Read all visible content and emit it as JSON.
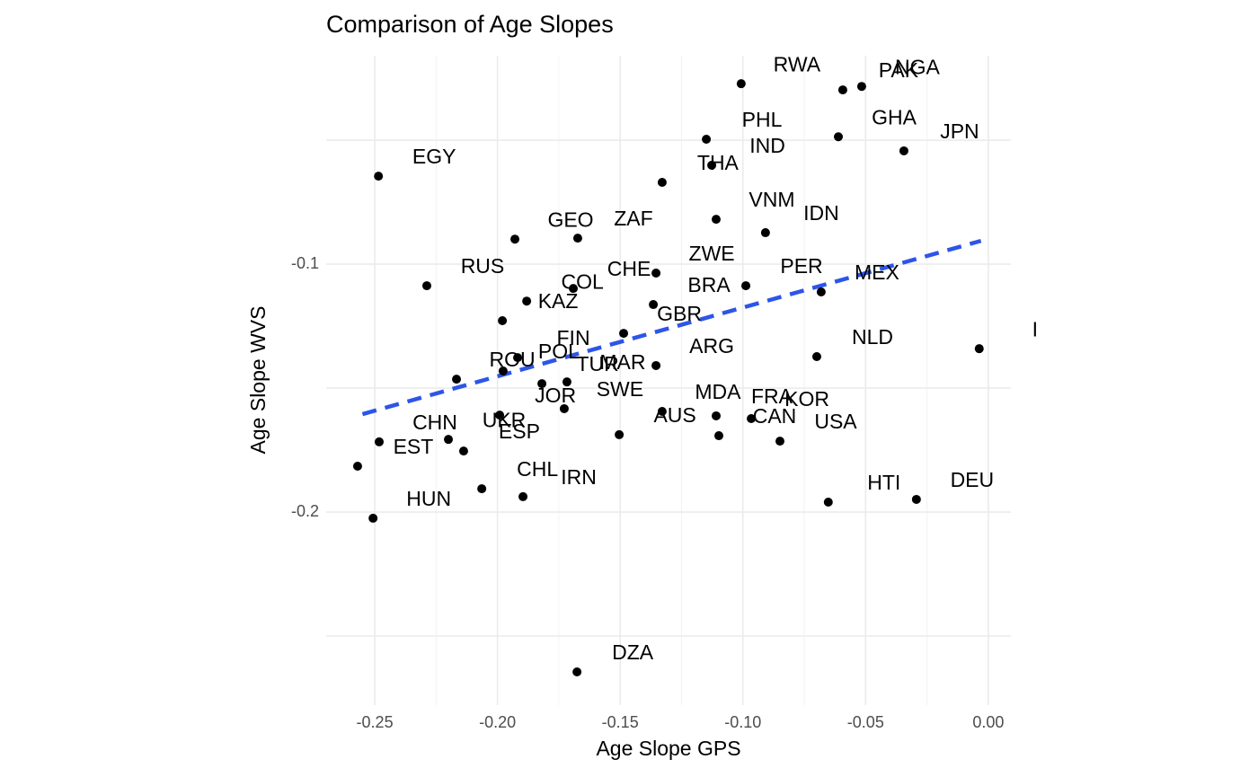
{
  "chart_data": {
    "type": "scatter",
    "title": "Comparison of Age Slopes",
    "x_label": "Age Slope GPS",
    "y_label": "Age Slope WVS",
    "labels": [
      "RWA",
      "PAK",
      "NGA",
      "PHL",
      "GHA",
      "JPN",
      "IND",
      "EGY",
      "THA",
      "VNM",
      "IDN",
      "GEO",
      "ZAF",
      "ZWE",
      "RUS",
      "CHE",
      "PER",
      "MEX",
      "COL",
      "BRA",
      "KAZ",
      "GBR",
      "I",
      "NLD",
      "FIN",
      "POL",
      "ARG",
      "ROU",
      "TUR",
      "MAR",
      "SWE",
      "JOR",
      "MDA",
      "FRA",
      "KOR",
      "UKR",
      "CHN",
      "ESP",
      "AUS",
      "CAN",
      "USA",
      "EST",
      "CHL",
      "IRN",
      "HUN",
      "HTI",
      "DEU",
      "DZA"
    ],
    "x": [
      -0.1007,
      -0.0593,
      -0.0516,
      -0.1149,
      -0.0611,
      -0.0344,
      -0.1127,
      -0.2485,
      -0.1329,
      -0.1109,
      -0.0908,
      -0.1929,
      -0.1673,
      -0.1354,
      -0.2288,
      -0.1691,
      -0.0988,
      -0.0681,
      -0.1881,
      -0.1365,
      -0.198,
      -0.1486,
      -0.0037,
      -0.0699,
      -0.1918,
      -0.1977,
      -0.1354,
      -0.2167,
      -0.1819,
      -0.1717,
      -0.1728,
      -0.1991,
      -0.1329,
      -0.1109,
      -0.0966,
      -0.22,
      -0.2482,
      -0.2138,
      -0.1504,
      -0.1098,
      -0.0849,
      -0.257,
      -0.2064,
      -0.1896,
      -0.2507,
      -0.0652,
      -0.0293,
      -0.1676
    ],
    "y": [
      -0.0272,
      -0.0297,
      -0.0283,
      -0.0496,
      -0.0486,
      -0.0543,
      -0.0601,
      -0.0645,
      -0.067,
      -0.0819,
      -0.0873,
      -0.0899,
      -0.0895,
      -0.1036,
      -0.1087,
      -0.1098,
      -0.1087,
      -0.1112,
      -0.1149,
      -0.1163,
      -0.1228,
      -0.1279,
      -0.1341,
      -0.1373,
      -0.1377,
      -0.1431,
      -0.1409,
      -0.1464,
      -0.1482,
      -0.1475,
      -0.1583,
      -0.1609,
      -0.1594,
      -0.1612,
      -0.1623,
      -0.1707,
      -0.1717,
      -0.1754,
      -0.1688,
      -0.1692,
      -0.1714,
      -0.1815,
      -0.1906,
      -0.1938,
      -0.2025,
      -0.196,
      -0.1949,
      -0.2645
    ],
    "color": "#000000",
    "trend": {
      "x": [
        -0.255,
        -0.003
      ],
      "y": [
        -0.1605,
        -0.0906
      ],
      "color": "#2d55e8",
      "dashed": true
    },
    "xlim": [
      -0.2698,
      0.0092
    ],
    "ylim": [
      -0.2779,
      -0.0159
    ],
    "xticks": [
      -0.25,
      {
        "value": -0.2,
        "label": "-0.20"
      },
      -0.15,
      {
        "value": -0.1,
        "label": "-0.10"
      },
      -0.05,
      {
        "value": 0,
        "label": "0.00"
      }
    ],
    "yticks": [
      -0.2,
      -0.1
    ],
    "x_minor_grid": [
      -0.225,
      -0.175,
      -0.125,
      -0.075,
      -0.025
    ],
    "y_minor_grid": [
      -0.25,
      -0.15,
      -0.05
    ],
    "grid": true
  }
}
